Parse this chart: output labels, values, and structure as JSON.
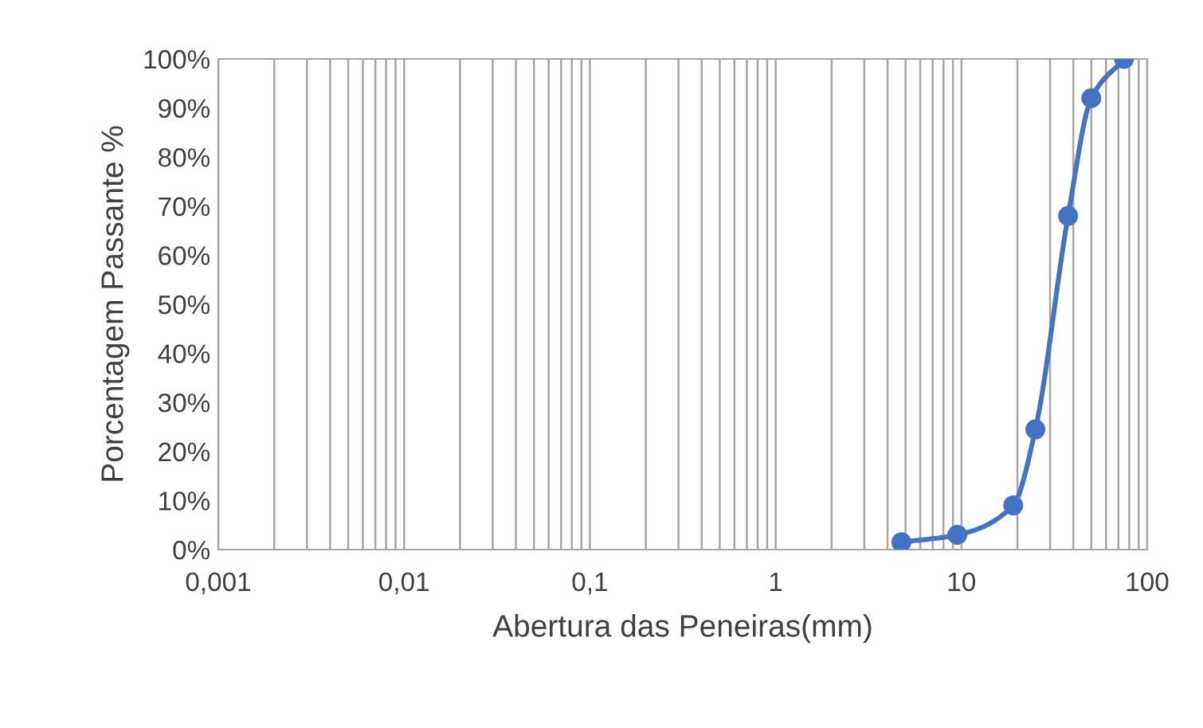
{
  "chart_data": {
    "type": "line",
    "xlabel": "Abertura das Peneiras(mm)",
    "ylabel": "Porcentagem Passante %",
    "x": [
      4.75,
      9.5,
      19,
      25,
      37.5,
      50,
      75
    ],
    "series": [
      {
        "color": "#4472c4",
        "values": [
          1.5,
          3,
          9,
          24.5,
          68,
          92,
          100
        ]
      }
    ],
    "log": "x",
    "xlim": [
      0.001,
      100
    ],
    "xticks": [
      {
        "value": 0.001,
        "label": "0,001"
      },
      {
        "value": 0.01,
        "label": "0,01"
      },
      {
        "value": 0.1,
        "label": "0,1"
      },
      1,
      10,
      100
    ],
    "ylim": [
      0,
      100
    ],
    "yticks": [
      {
        "value": 0,
        "label": "0%"
      },
      {
        "value": 10,
        "label": "10%"
      },
      {
        "value": 20,
        "label": "20%"
      },
      {
        "value": 30,
        "label": "30%"
      },
      {
        "value": 40,
        "label": "40%"
      },
      {
        "value": 50,
        "label": "50%"
      },
      {
        "value": 60,
        "label": "60%"
      },
      {
        "value": 70,
        "label": "70%"
      },
      {
        "value": 80,
        "label": "80%"
      },
      {
        "value": 90,
        "label": "90%"
      },
      {
        "value": 100,
        "label": "100%"
      }
    ],
    "grid": "x",
    "marker": "circle",
    "line_style": "solid"
  }
}
